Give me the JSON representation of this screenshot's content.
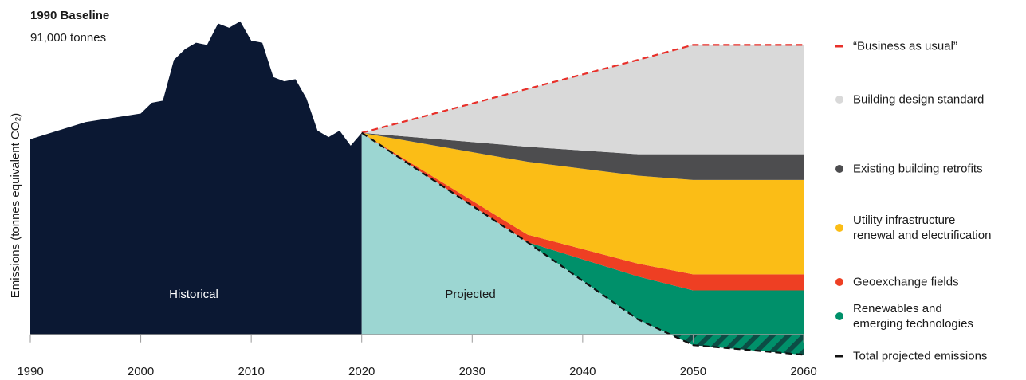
{
  "chart_data": {
    "type": "area",
    "y_label": "Emissions (tonnes equivalent CO₂)",
    "annotations": {
      "baseline_title": "1990 Baseline",
      "baseline_value": "91,000 tonnes",
      "historical": "Historical",
      "projected": "Projected"
    },
    "xlim": [
      1990,
      2060
    ],
    "xticks": [
      1990,
      2000,
      2010,
      2020,
      2030,
      2040,
      2050,
      2060
    ],
    "ylim": [
      -12000,
      150000
    ],
    "historical": {
      "color": "#0b1833",
      "x": [
        1990,
        1995,
        2000,
        2001,
        2002,
        2003,
        2004,
        2005,
        2006,
        2007,
        2008,
        2009,
        2010,
        2011,
        2012,
        2013,
        2014,
        2015,
        2016,
        2017,
        2018,
        2019,
        2020
      ],
      "values": [
        91000,
        99000,
        103000,
        108000,
        109000,
        128000,
        133000,
        136000,
        135000,
        145000,
        143000,
        146000,
        137000,
        136000,
        120000,
        118000,
        119000,
        110000,
        95000,
        92000,
        95000,
        88000,
        94000
      ]
    },
    "projected": {
      "fill_color": "#9cd6d2",
      "x": [
        2020,
        2035,
        2045,
        2050,
        2060
      ],
      "series": [
        {
          "name": "“Business as usual”",
          "color": "#e8302a",
          "dash": true,
          "values": [
            94000,
            114500,
            128000,
            135000,
            135000
          ]
        },
        {
          "name": "Building design standard",
          "color": "#d9d9d9",
          "stack": true,
          "values": [
            0,
            27000,
            44000,
            51000,
            51000
          ]
        },
        {
          "name": "Existing building retrofits",
          "color": "#4d4d4f",
          "stack": true,
          "values": [
            0,
            7000,
            10000,
            12000,
            12000
          ]
        },
        {
          "name": "Utility infrastructure\nrenewal and electrification",
          "color": "#fbbd16",
          "stack": true,
          "values": [
            0,
            34000,
            41000,
            44000,
            44000
          ]
        },
        {
          "name": "Geoexchange fields",
          "color": "#ee3f23",
          "stack": true,
          "values": [
            0,
            3500,
            6000,
            7500,
            7500
          ]
        },
        {
          "name": "Renewables and\nemerging technologies",
          "color": "#00906a",
          "stack": true,
          "values": [
            0,
            0,
            20000,
            25500,
            30000
          ]
        },
        {
          "name": "Total projected emissions",
          "color": "#111111",
          "dash": true,
          "values": [
            94000,
            43000,
            7000,
            -5000,
            -9500
          ]
        }
      ]
    }
  }
}
